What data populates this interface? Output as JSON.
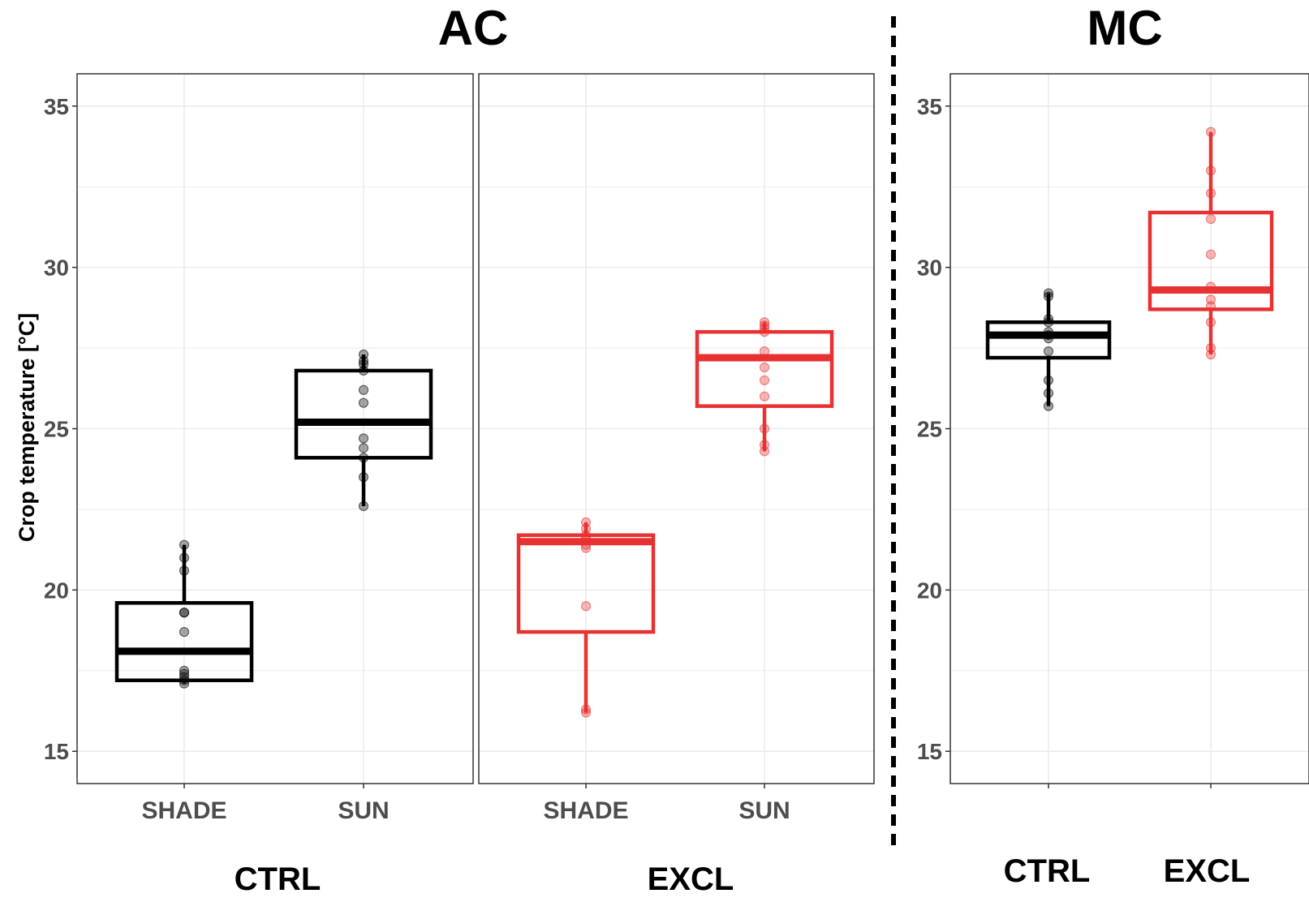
{
  "colors": {
    "ctrl": "#000000",
    "excl": "#e83232",
    "grid": "#ebebeb",
    "panel_border": "#333333",
    "tick_text": "#4d4d4d"
  },
  "titles": {
    "left": "AC",
    "right": "MC"
  },
  "group_labels": {
    "ac_ctrl": "CTRL",
    "ac_excl": "EXCL",
    "mc_ctrl": "CTRL",
    "mc_excl": "EXCL"
  },
  "chart_data": [
    {
      "type": "box",
      "title": "AC",
      "ylabel": "Crop temperature  [°C]",
      "ylim": [
        14,
        36
      ],
      "yticks": [
        15,
        20,
        25,
        30,
        35
      ],
      "grid": true,
      "panels": [
        {
          "label": "CTRL",
          "categories": [
            "SHADE",
            "SUN"
          ],
          "boxes": [
            {
              "category": "SHADE",
              "color": "ctrl",
              "min": 17.1,
              "q1": 17.2,
              "median": 18.1,
              "q3": 19.6,
              "max": 21.4,
              "points": [
                17.1,
                17.2,
                17.3,
                17.4,
                17.5,
                18.7,
                19.3,
                19.3,
                20.6,
                21.0,
                21.4
              ]
            },
            {
              "category": "SUN",
              "color": "ctrl",
              "min": 22.6,
              "q1": 24.1,
              "median": 25.2,
              "q3": 26.8,
              "max": 27.3,
              "points": [
                22.6,
                23.5,
                24.1,
                24.4,
                24.7,
                25.8,
                26.2,
                26.8,
                27.0,
                27.1,
                27.3
              ]
            }
          ]
        },
        {
          "label": "EXCL",
          "categories": [
            "SHADE",
            "SUN"
          ],
          "boxes": [
            {
              "category": "SHADE",
              "color": "excl",
              "min": 16.2,
              "q1": 18.7,
              "median": 21.5,
              "q3": 21.7,
              "max": 22.1,
              "points": [
                16.2,
                16.3,
                19.5,
                21.3,
                21.4,
                21.6,
                21.7,
                21.9,
                22.1
              ]
            },
            {
              "category": "SUN",
              "color": "excl",
              "min": 24.3,
              "q1": 25.7,
              "median": 27.2,
              "q3": 28.0,
              "max": 28.3,
              "points": [
                24.3,
                24.5,
                25.0,
                26.0,
                26.5,
                26.9,
                27.4,
                28.0,
                28.1,
                28.2,
                28.3
              ]
            }
          ]
        }
      ]
    },
    {
      "type": "box",
      "title": "MC",
      "ylim": [
        14,
        36
      ],
      "yticks": [
        15,
        20,
        25,
        30,
        35
      ],
      "grid": true,
      "categories": [
        "CTRL",
        "EXCL"
      ],
      "boxes": [
        {
          "category": "CTRL",
          "color": "ctrl",
          "min": 25.7,
          "q1": 27.2,
          "median": 27.9,
          "q3": 28.3,
          "max": 29.2,
          "points": [
            25.7,
            26.1,
            26.5,
            27.4,
            27.8,
            27.9,
            28.0,
            28.3,
            28.4,
            29.1,
            29.2
          ]
        },
        {
          "category": "EXCL",
          "color": "excl",
          "min": 27.3,
          "q1": 28.7,
          "median": 29.3,
          "q3": 31.7,
          "max": 34.2,
          "points": [
            27.3,
            27.5,
            28.3,
            28.8,
            29.0,
            29.4,
            30.4,
            31.5,
            32.3,
            33.0,
            34.2
          ]
        }
      ]
    }
  ]
}
